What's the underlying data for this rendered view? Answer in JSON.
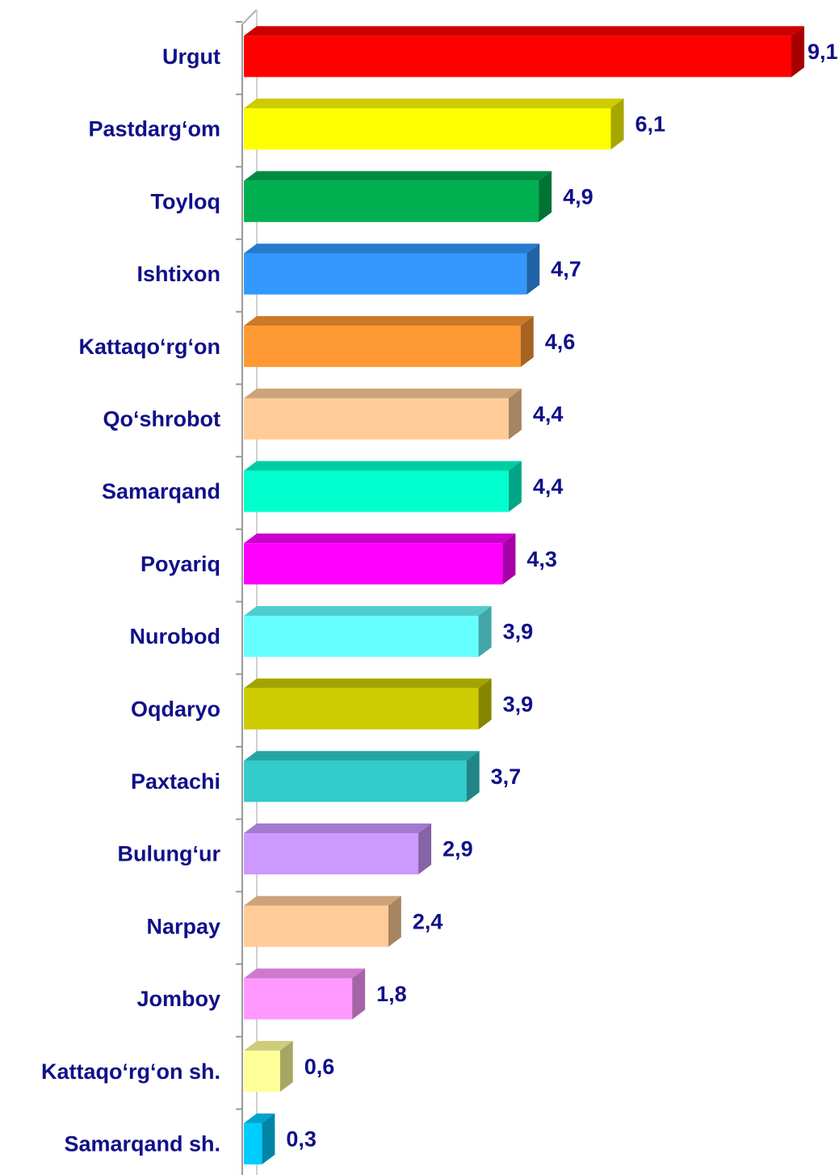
{
  "chart_data": {
    "type": "bar3d_horizontal",
    "categories": [
      "Urgut",
      "Pastdarg‘om",
      "Toyloq",
      "Ishtixon",
      "Kattaqo‘rg‘on",
      "Qo‘shrobot",
      "Samarqand",
      "Poyariq",
      "Nurobod",
      "Oqdaryo",
      "Paxtachi",
      "Bulung‘ur",
      "Narpay",
      "Jomboy",
      "Kattaqo‘rg‘on sh.",
      "Samarqand sh."
    ],
    "values": [
      9.1,
      6.1,
      4.9,
      4.7,
      4.6,
      4.4,
      4.4,
      4.3,
      3.9,
      3.9,
      3.7,
      2.9,
      2.4,
      1.8,
      0.6,
      0.3
    ],
    "value_labels": [
      "9,1",
      "6,1",
      "4,9",
      "4,7",
      "4,6",
      "4,4",
      "4,4",
      "4,3",
      "3,9",
      "3,9",
      "3,7",
      "2,9",
      "2,4",
      "1,8",
      "0,6",
      "0,3"
    ],
    "colors": [
      "#ff0000",
      "#ffff00",
      "#00b050",
      "#3399ff",
      "#ff9933",
      "#ffcc99",
      "#00ffcc",
      "#ff00ff",
      "#66ffff",
      "#cccc00",
      "#33cccc",
      "#cc99ff",
      "#ffcc99",
      "#ff99ff",
      "#ffff99",
      "#00ccff"
    ]
  }
}
